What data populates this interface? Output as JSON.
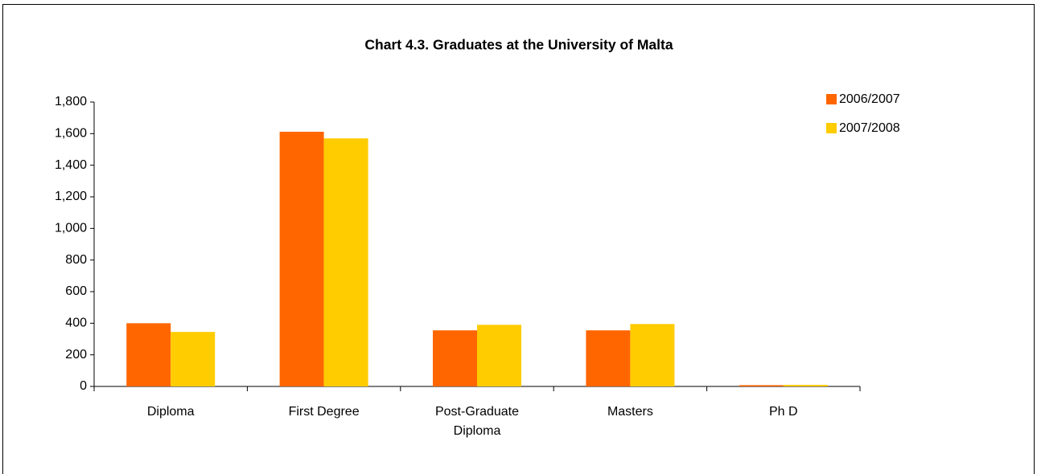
{
  "chart_data": {
    "type": "bar",
    "title": "Chart 4.3. Graduates at the University of Malta",
    "categories": [
      "Diploma",
      "First Degree",
      "Post-Graduate Diploma",
      "Masters",
      "Ph D"
    ],
    "series": [
      {
        "name": "2006/2007",
        "color": "#ff6600",
        "values": [
          400,
          1612,
          355,
          355,
          8
        ]
      },
      {
        "name": "2007/2008",
        "color": "#ffcc00",
        "values": [
          345,
          1570,
          390,
          395,
          10
        ]
      }
    ],
    "ylim": [
      0,
      1800
    ],
    "yticks": [
      0,
      200,
      400,
      600,
      800,
      {
        "value": 1000,
        "label": "1,000"
      },
      {
        "value": 1200,
        "label": "1,200"
      },
      {
        "value": 1400,
        "label": "1,400"
      },
      {
        "value": 1600,
        "label": "1,600"
      },
      {
        "value": 1800,
        "label": "1,800"
      }
    ],
    "grid": false,
    "legend": "top-right"
  }
}
